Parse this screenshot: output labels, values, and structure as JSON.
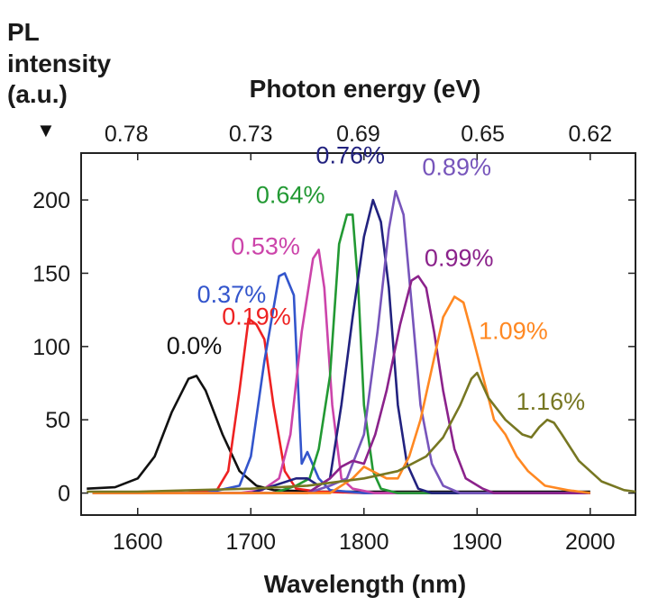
{
  "chart_data": {
    "type": "line",
    "title": "",
    "xlabel": "Wavelength (nm)",
    "ylabel_lines": [
      "PL",
      "intensity",
      "(a.u.)"
    ],
    "ylabel_marker": "▼",
    "x2label": "Photon energy (eV)",
    "xlim": [
      1550,
      2040
    ],
    "ylim": [
      -15,
      232
    ],
    "x_ticks": [
      1600,
      1700,
      1800,
      1900,
      2000
    ],
    "x_tick_labels": [
      "1600",
      "1700",
      "1800",
      "1900",
      "2000"
    ],
    "y_ticks": [
      0,
      50,
      100,
      150,
      200
    ],
    "y_tick_labels": [
      "0",
      "50",
      "100",
      "150",
      "200"
    ],
    "top_ticks": [
      {
        "label": "0.78",
        "x": 1590
      },
      {
        "label": "0.73",
        "x": 1700
      },
      {
        "label": "0.69",
        "x": 1795
      },
      {
        "label": "0.65",
        "x": 1905
      },
      {
        "label": "0.62",
        "x": 2000
      }
    ],
    "grid": false,
    "series": [
      {
        "name": "0.0%",
        "color": "#111111",
        "label_at": [
          1650,
          95
        ],
        "points": [
          [
            1555,
            3
          ],
          [
            1580,
            4
          ],
          [
            1600,
            10
          ],
          [
            1615,
            25
          ],
          [
            1630,
            55
          ],
          [
            1645,
            78
          ],
          [
            1652,
            80
          ],
          [
            1660,
            70
          ],
          [
            1675,
            40
          ],
          [
            1690,
            15
          ],
          [
            1705,
            5
          ],
          [
            1720,
            2
          ],
          [
            1760,
            1
          ],
          [
            1800,
            1
          ],
          [
            2000,
            1
          ]
        ]
      },
      {
        "name": "0.19%",
        "color": "#ee2222",
        "label_at": [
          1705,
          115
        ],
        "points": [
          [
            1560,
            0
          ],
          [
            1640,
            0
          ],
          [
            1670,
            2
          ],
          [
            1680,
            15
          ],
          [
            1690,
            70
          ],
          [
            1698,
            119
          ],
          [
            1705,
            115
          ],
          [
            1712,
            105
          ],
          [
            1720,
            60
          ],
          [
            1730,
            15
          ],
          [
            1740,
            3
          ],
          [
            1760,
            1
          ],
          [
            1800,
            0
          ],
          [
            2000,
            0
          ]
        ]
      },
      {
        "name": "0.37%",
        "color": "#3355cc",
        "label_at": [
          1683,
          130
        ],
        "points": [
          [
            1560,
            0
          ],
          [
            1660,
            0
          ],
          [
            1690,
            5
          ],
          [
            1700,
            25
          ],
          [
            1712,
            90
          ],
          [
            1725,
            148
          ],
          [
            1730,
            150
          ],
          [
            1738,
            135
          ],
          [
            1745,
            20
          ],
          [
            1750,
            28
          ],
          [
            1760,
            10
          ],
          [
            1770,
            2
          ],
          [
            1800,
            0
          ],
          [
            2000,
            0
          ]
        ]
      },
      {
        "name": "0.53%",
        "color": "#cc44aa",
        "label_at": [
          1713,
          163
        ],
        "points": [
          [
            1560,
            0
          ],
          [
            1690,
            0
          ],
          [
            1710,
            2
          ],
          [
            1725,
            10
          ],
          [
            1735,
            40
          ],
          [
            1745,
            110
          ],
          [
            1755,
            160
          ],
          [
            1760,
            166
          ],
          [
            1765,
            140
          ],
          [
            1772,
            60
          ],
          [
            1780,
            10
          ],
          [
            1790,
            3
          ],
          [
            1810,
            0
          ],
          [
            2000,
            0
          ]
        ]
      },
      {
        "name": "0.64%",
        "color": "#229933",
        "label_at": [
          1735,
          198
        ],
        "points": [
          [
            1560,
            0
          ],
          [
            1720,
            0
          ],
          [
            1740,
            5
          ],
          [
            1752,
            10
          ],
          [
            1760,
            30
          ],
          [
            1770,
            80
          ],
          [
            1778,
            170
          ],
          [
            1785,
            190
          ],
          [
            1790,
            190
          ],
          [
            1795,
            140
          ],
          [
            1800,
            60
          ],
          [
            1808,
            15
          ],
          [
            1815,
            3
          ],
          [
            1830,
            0
          ],
          [
            2000,
            0
          ]
        ]
      },
      {
        "name": "0.76%",
        "color": "#22227f",
        "label_at": [
          1788,
          225
        ],
        "points": [
          [
            1560,
            0
          ],
          [
            1700,
            0
          ],
          [
            1740,
            10
          ],
          [
            1750,
            10
          ],
          [
            1760,
            5
          ],
          [
            1770,
            10
          ],
          [
            1780,
            60
          ],
          [
            1790,
            120
          ],
          [
            1800,
            175
          ],
          [
            1808,
            200
          ],
          [
            1815,
            185
          ],
          [
            1822,
            140
          ],
          [
            1830,
            60
          ],
          [
            1838,
            20
          ],
          [
            1848,
            3
          ],
          [
            1860,
            0
          ],
          [
            2000,
            0
          ]
        ]
      },
      {
        "name": "0.89%",
        "color": "#7755bb",
        "label_at": [
          1882,
          217
        ],
        "points": [
          [
            1560,
            0
          ],
          [
            1750,
            0
          ],
          [
            1770,
            5
          ],
          [
            1785,
            10
          ],
          [
            1800,
            40
          ],
          [
            1812,
            110
          ],
          [
            1822,
            180
          ],
          [
            1828,
            206
          ],
          [
            1835,
            190
          ],
          [
            1842,
            130
          ],
          [
            1850,
            60
          ],
          [
            1860,
            20
          ],
          [
            1870,
            5
          ],
          [
            1885,
            0
          ],
          [
            2000,
            0
          ]
        ]
      },
      {
        "name": "0.99%",
        "color": "#8b228b",
        "label_at": [
          1884,
          155
        ],
        "points": [
          [
            1560,
            0
          ],
          [
            1750,
            0
          ],
          [
            1770,
            10
          ],
          [
            1780,
            18
          ],
          [
            1790,
            22
          ],
          [
            1800,
            20
          ],
          [
            1810,
            40
          ],
          [
            1820,
            70
          ],
          [
            1832,
            115
          ],
          [
            1842,
            145
          ],
          [
            1848,
            148
          ],
          [
            1855,
            140
          ],
          [
            1862,
            110
          ],
          [
            1870,
            70
          ],
          [
            1880,
            30
          ],
          [
            1890,
            10
          ],
          [
            1905,
            3
          ],
          [
            1915,
            0
          ],
          [
            2000,
            0
          ]
        ]
      },
      {
        "name": "1.09%",
        "color": "#ff8822",
        "label_at": [
          1932,
          105
        ],
        "points": [
          [
            1560,
            0
          ],
          [
            1770,
            0
          ],
          [
            1790,
            10
          ],
          [
            1800,
            18
          ],
          [
            1810,
            14
          ],
          [
            1820,
            10
          ],
          [
            1830,
            10
          ],
          [
            1840,
            25
          ],
          [
            1850,
            50
          ],
          [
            1860,
            85
          ],
          [
            1870,
            120
          ],
          [
            1880,
            134
          ],
          [
            1888,
            130
          ],
          [
            1895,
            110
          ],
          [
            1905,
            80
          ],
          [
            1915,
            50
          ],
          [
            1925,
            40
          ],
          [
            1935,
            25
          ],
          [
            1945,
            15
          ],
          [
            1960,
            5
          ],
          [
            1980,
            2
          ],
          [
            2000,
            0
          ]
        ]
      },
      {
        "name": "1.16%",
        "color": "#777722",
        "label_at": [
          1965,
          57
        ],
        "points": [
          [
            1555,
            1
          ],
          [
            1600,
            1
          ],
          [
            1650,
            2
          ],
          [
            1700,
            3
          ],
          [
            1750,
            5
          ],
          [
            1780,
            8
          ],
          [
            1800,
            10
          ],
          [
            1830,
            15
          ],
          [
            1855,
            25
          ],
          [
            1870,
            38
          ],
          [
            1885,
            60
          ],
          [
            1895,
            78
          ],
          [
            1900,
            82
          ],
          [
            1910,
            65
          ],
          [
            1925,
            50
          ],
          [
            1940,
            40
          ],
          [
            1948,
            38
          ],
          [
            1955,
            45
          ],
          [
            1962,
            50
          ],
          [
            1968,
            48
          ],
          [
            1975,
            40
          ],
          [
            1990,
            22
          ],
          [
            2010,
            8
          ],
          [
            2030,
            2
          ],
          [
            2040,
            1
          ]
        ]
      }
    ]
  }
}
